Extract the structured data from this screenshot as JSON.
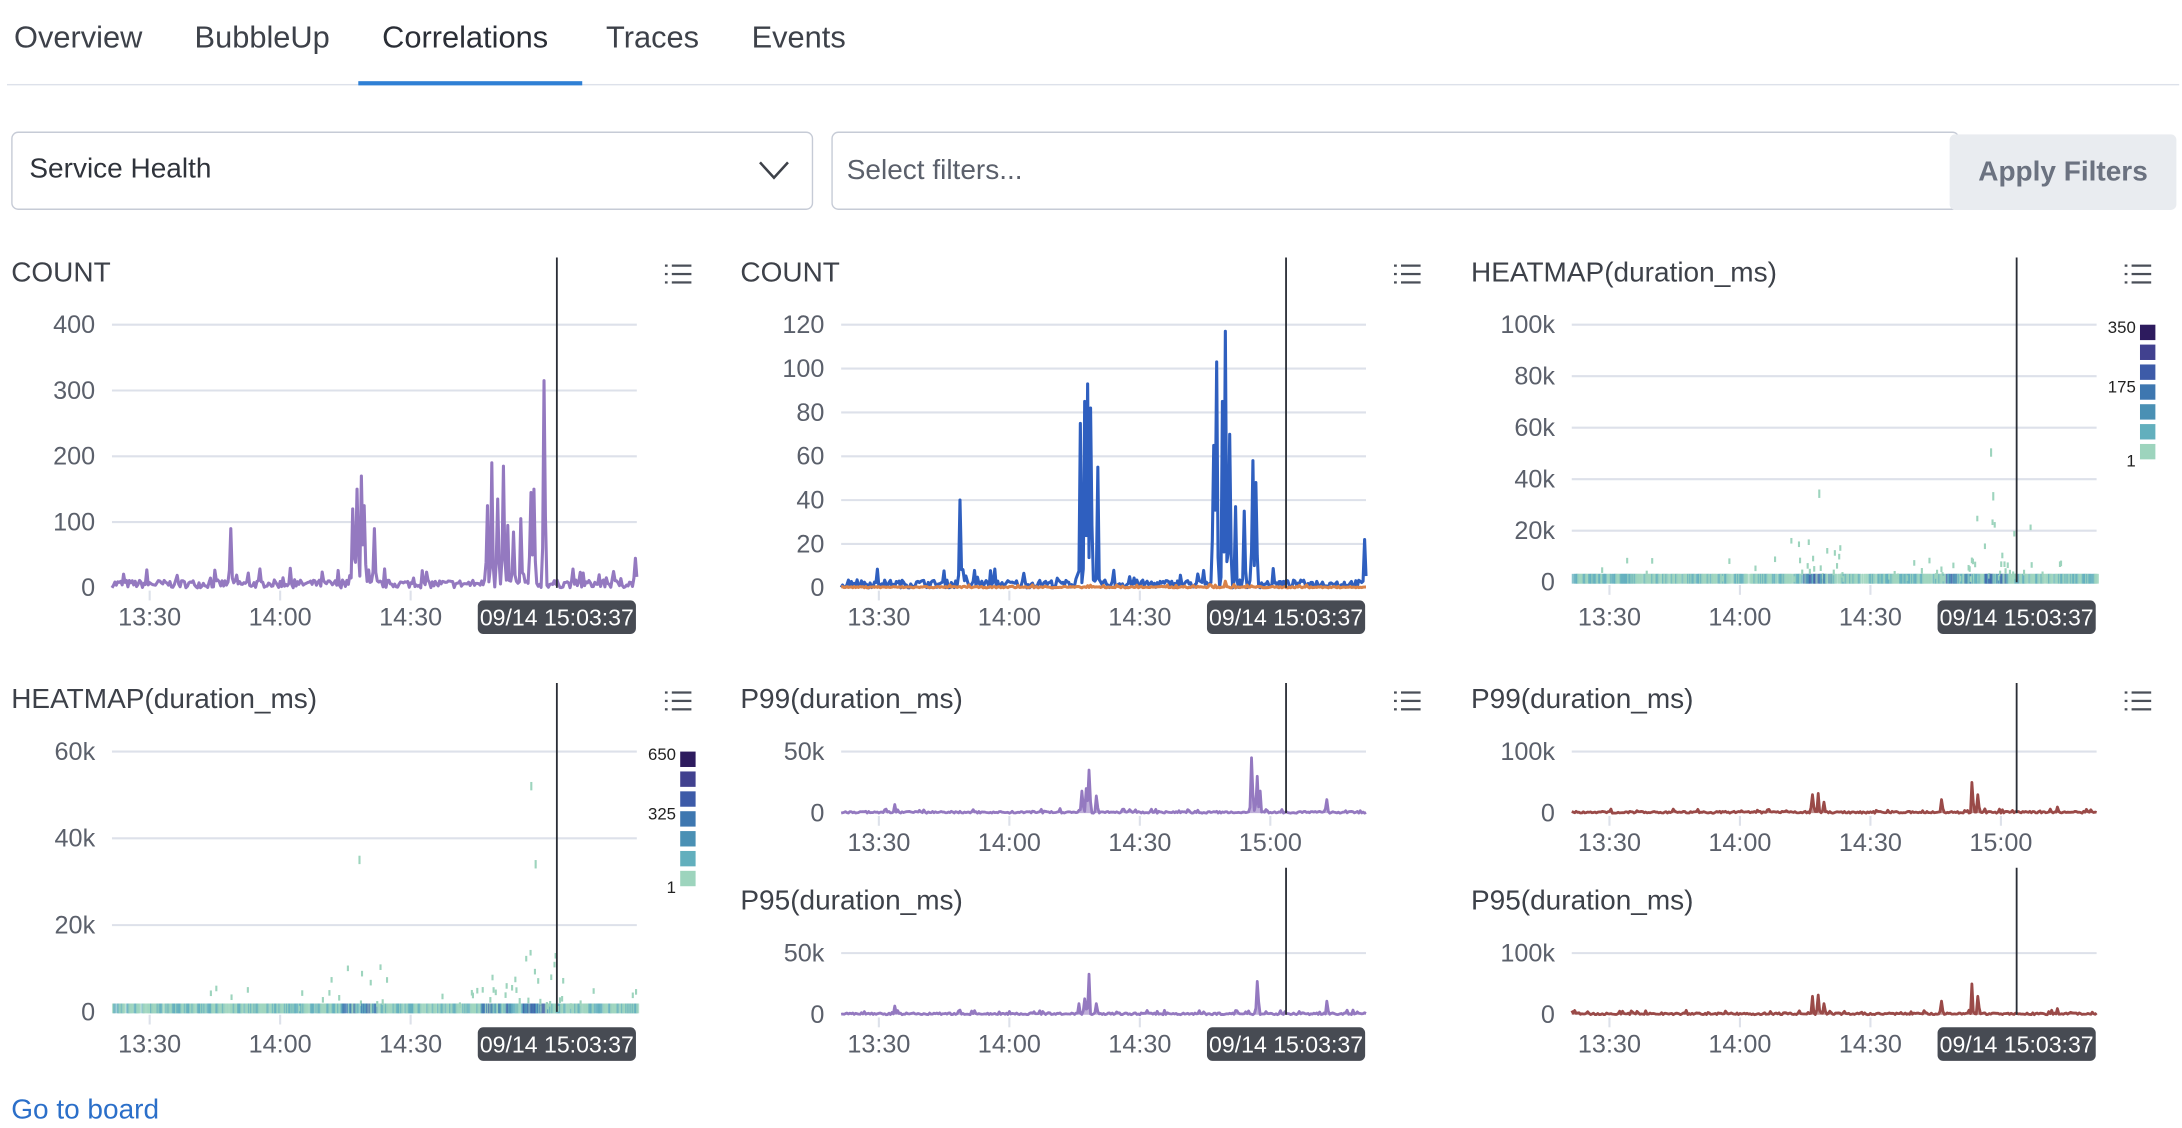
{
  "tabs": [
    {
      "label": "Overview"
    },
    {
      "label": "BubbleUp"
    },
    {
      "label": "Correlations",
      "active": true
    },
    {
      "label": "Traces"
    },
    {
      "label": "Events"
    }
  ],
  "toolbar": {
    "dropdown_value": "Service Health",
    "filter_placeholder": "Select filters...",
    "apply_label": "Apply Filters"
  },
  "footer": {
    "link_label": "Go to board"
  },
  "colors": {
    "accent": "#2f80d5",
    "link": "#2b6fc9",
    "purple": "#9479c0",
    "blue": "#2f5fbf",
    "orange": "#d9834a",
    "red": "#9a4a48",
    "tooltip_bg": "#474b53"
  },
  "icons": {
    "panel_menu": "list-icon",
    "dropdown": "chevron-down-icon"
  },
  "chart_data": [
    {
      "title": "COUNT",
      "type": "line",
      "ylim": [
        0,
        400
      ],
      "yticks": [
        "0",
        "100",
        "200",
        "300",
        "400"
      ],
      "ytick_values": [
        0,
        100,
        200,
        300,
        400
      ],
      "xlim": [
        "13:21:20",
        "15:22:00"
      ],
      "xticks": [
        "13:30",
        "14:00",
        "14:30"
      ],
      "cursor": "15:03:37",
      "cursor_label": "09/14 15:03:37",
      "series": [
        {
          "color": "#9479c0",
          "peaks": [
            [
              "13:48:36",
              90
            ],
            [
              "14:16:36",
              120
            ],
            [
              "14:17:48",
              150
            ],
            [
              "14:18:40",
              170
            ],
            [
              "14:19:10",
              125
            ],
            [
              "14:21:36",
              90
            ],
            [
              "14:47:30",
              125
            ],
            [
              "14:48:40",
              190
            ],
            [
              "14:50:00",
              135
            ],
            [
              "14:51:20",
              185
            ],
            [
              "14:52:20",
              95
            ],
            [
              "14:53:40",
              85
            ],
            [
              "14:55:10",
              105
            ],
            [
              "14:57:30",
              145
            ],
            [
              "14:58:20",
              150
            ],
            [
              "15:00:36",
              315
            ],
            [
              "15:21:30",
              45
            ]
          ]
        }
      ]
    },
    {
      "title": "COUNT",
      "type": "line",
      "ylim": [
        0,
        120
      ],
      "yticks": [
        "0",
        "20",
        "40",
        "60",
        "80",
        "100",
        "120"
      ],
      "ytick_values": [
        0,
        20,
        40,
        60,
        80,
        100,
        120
      ],
      "xlim": [
        "13:21:20",
        "15:22:00"
      ],
      "xticks": [
        "13:30",
        "14:00",
        "14:30"
      ],
      "cursor": "15:03:37",
      "cursor_label": "09/14 15:03:37",
      "series": [
        {
          "color": "#2f5fbf",
          "peaks": [
            [
              "13:48:36",
              40
            ],
            [
              "14:16:20",
              75
            ],
            [
              "14:17:20",
              85
            ],
            [
              "14:18:00",
              93
            ],
            [
              "14:18:40",
              82
            ],
            [
              "14:20:20",
              55
            ],
            [
              "14:47:00",
              65
            ],
            [
              "14:47:40",
              103
            ],
            [
              "14:48:50",
              85
            ],
            [
              "14:49:40",
              117
            ],
            [
              "14:50:40",
              70
            ],
            [
              "14:52:00",
              37
            ],
            [
              "14:54:00",
              35
            ],
            [
              "14:56:00",
              58
            ],
            [
              "14:56:40",
              48
            ],
            [
              "15:21:30",
              22
            ]
          ]
        },
        {
          "color": "#d9834a",
          "peaks": [
            [
              "14:49:30",
              3
            ]
          ]
        }
      ]
    },
    {
      "title": "HEATMAP(duration_ms)",
      "type": "heatmap",
      "ylim": [
        0,
        100000
      ],
      "yticks": [
        "0",
        "20k",
        "40k",
        "60k",
        "80k",
        "100k"
      ],
      "ytick_values": [
        0,
        20000,
        40000,
        60000,
        80000,
        100000
      ],
      "xlim": [
        "13:21:20",
        "15:22:00"
      ],
      "xticks": [
        "13:30",
        "14:00",
        "14:30"
      ],
      "cursor": "15:03:37",
      "cursor_label": "09/14 15:03:37",
      "legend": {
        "labels": [
          "350",
          "175",
          "1"
        ],
        "colors": [
          "#2d1b5e",
          "#41418f",
          "#3d5ba8",
          "#3e77b0",
          "#4a90b4",
          "#62afbd",
          "#9dd4bd"
        ]
      },
      "hot_times": [
        "14:18:00",
        "14:50:00",
        "15:00:00"
      ],
      "max_points": [
        [
          "14:18:00",
          36000
        ],
        [
          "14:57:30",
          52000
        ],
        [
          "14:58:00",
          35000
        ]
      ]
    },
    {
      "title": "HEATMAP(duration_ms)",
      "type": "heatmap",
      "ylim": [
        0,
        60000
      ],
      "yticks": [
        "0",
        "20k",
        "40k",
        "60k"
      ],
      "ytick_values": [
        0,
        20000,
        40000,
        60000
      ],
      "xlim": [
        "13:21:20",
        "15:22:00"
      ],
      "xticks": [
        "13:30",
        "14:00",
        "14:30"
      ],
      "cursor": "15:03:37",
      "cursor_label": "09/14 15:03:37",
      "legend": {
        "labels": [
          "650",
          "325",
          "1"
        ],
        "colors": [
          "#2d1b5e",
          "#41418f",
          "#3d5ba8",
          "#3e77b0",
          "#4a90b4",
          "#62afbd",
          "#9dd4bd"
        ]
      },
      "hot_times": [
        "14:18:00",
        "14:50:00",
        "14:58:00"
      ],
      "max_points": [
        [
          "14:18:00",
          36000
        ],
        [
          "14:57:30",
          53000
        ],
        [
          "14:58:30",
          35000
        ]
      ]
    },
    {
      "title": "P99(duration_ms)",
      "type": "area",
      "ylim": [
        0,
        50000
      ],
      "yticks": [
        "0",
        "50k"
      ],
      "ytick_values": [
        0,
        50000
      ],
      "xlim": [
        "13:21:20",
        "15:22:00"
      ],
      "xticks": [
        "13:30",
        "14:00",
        "14:30",
        "15:00"
      ],
      "cursor": "15:03:37",
      "series": [
        {
          "color": "#9479c0",
          "peaks": [
            [
              "13:33:40",
              7000
            ],
            [
              "14:16:40",
              18000
            ],
            [
              "14:17:30",
              20000
            ],
            [
              "14:18:10",
              35000
            ],
            [
              "14:20:00",
              14000
            ],
            [
              "14:55:40",
              45000
            ],
            [
              "14:56:50",
              30000
            ],
            [
              "14:57:30",
              18000
            ],
            [
              "15:13:00",
              11000
            ]
          ]
        }
      ]
    },
    {
      "title": "P95(duration_ms)",
      "type": "area",
      "ylim": [
        0,
        50000
      ],
      "yticks": [
        "0",
        "50k"
      ],
      "ytick_values": [
        0,
        50000
      ],
      "xlim": [
        "13:21:20",
        "15:22:00"
      ],
      "xticks": [
        "13:30",
        "14:00",
        "14:30"
      ],
      "cursor": "15:03:37",
      "cursor_label": "09/14 15:03:37",
      "series": [
        {
          "color": "#9479c0",
          "peaks": [
            [
              "13:33:40",
              7000
            ],
            [
              "14:16:00",
              9000
            ],
            [
              "14:17:20",
              13000
            ],
            [
              "14:18:10",
              33000
            ],
            [
              "14:20:00",
              9000
            ],
            [
              "14:56:50",
              27000
            ],
            [
              "15:13:00",
              11000
            ]
          ]
        }
      ]
    },
    {
      "title": "P99(duration_ms)",
      "type": "area",
      "ylim": [
        0,
        100000
      ],
      "yticks": [
        "0",
        "100k"
      ],
      "ytick_values": [
        0,
        100000
      ],
      "xlim": [
        "13:21:20",
        "15:22:00"
      ],
      "xticks": [
        "13:30",
        "14:00",
        "14:30",
        "15:00"
      ],
      "cursor": "15:03:37",
      "series": [
        {
          "color": "#9a4a48",
          "peaks": [
            [
              "14:16:40",
              30000
            ],
            [
              "14:17:50",
              32000
            ],
            [
              "14:19:20",
              18000
            ],
            [
              "14:46:10",
              22000
            ],
            [
              "14:53:10",
              50000
            ],
            [
              "14:54:40",
              30000
            ],
            [
              "15:13:00",
              10000
            ]
          ]
        }
      ]
    },
    {
      "title": "P95(duration_ms)",
      "type": "area",
      "ylim": [
        0,
        100000
      ],
      "yticks": [
        "0",
        "100k"
      ],
      "ytick_values": [
        0,
        100000
      ],
      "xlim": [
        "13:21:20",
        "15:22:00"
      ],
      "xticks": [
        "13:30",
        "14:00",
        "14:30"
      ],
      "cursor": "15:03:37",
      "cursor_label": "09/14 15:03:37",
      "series": [
        {
          "color": "#9a4a48",
          "peaks": [
            [
              "14:16:40",
              30000
            ],
            [
              "14:17:50",
              32000
            ],
            [
              "14:19:20",
              18000
            ],
            [
              "14:46:10",
              22000
            ],
            [
              "14:53:10",
              50000
            ],
            [
              "14:54:40",
              30000
            ],
            [
              "15:13:00",
              10000
            ]
          ]
        }
      ]
    }
  ]
}
